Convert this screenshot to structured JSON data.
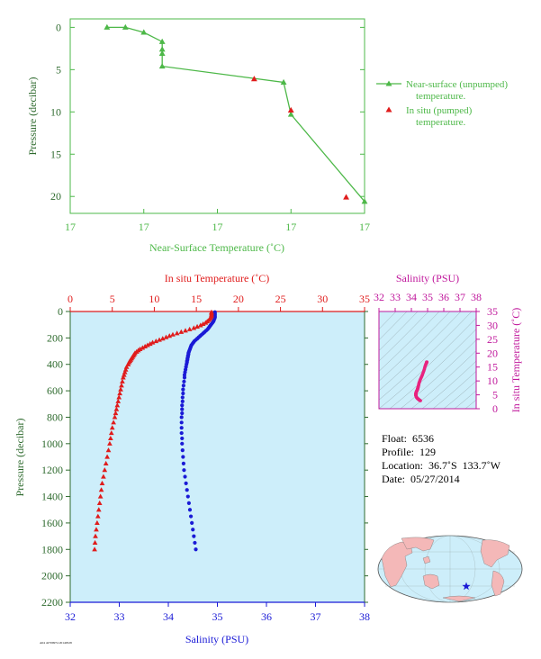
{
  "colors": {
    "green": "#4db848",
    "red": "#e01c1c",
    "blue": "#1a1ad6",
    "magenta": "#c0189c",
    "panel_bg": "#cdeefa",
    "axis_green": "#2f6b2f"
  },
  "chart_data": [
    {
      "type": "line",
      "xlabel": "Near-Surface Temperature (˚C)",
      "ylabel": "Pressure (decibar)",
      "x_tick_labels": [
        "17",
        "17",
        "17",
        "17",
        "17"
      ],
      "y_ticks": [
        0,
        5,
        10,
        15,
        20
      ],
      "xlim": [
        17.0,
        17.4
      ],
      "ylim": [
        22,
        -1
      ],
      "series": [
        {
          "name": "Near-surface (unpumped) temperature.",
          "marker": "triangle-line",
          "x": [
            17.05,
            17.075,
            17.1,
            17.125,
            17.125,
            17.125,
            17.125,
            17.29,
            17.3,
            17.4
          ],
          "y": [
            0,
            0,
            0.6,
            1.7,
            2.6,
            3.1,
            4.6,
            6.5,
            10.3,
            20.6
          ]
        },
        {
          "name": "In situ (pumped) temperature.",
          "marker": "triangle",
          "x": [
            17.25,
            17.3,
            17.375
          ],
          "y": [
            6.1,
            9.8,
            20.1
          ]
        }
      ],
      "legend": [
        {
          "line1": "Near-surface (unpumped)",
          "line2": "temperature."
        },
        {
          "line1": "In situ (pumped)",
          "line2": "temperature."
        }
      ],
      "legend_position": "right"
    },
    {
      "type": "scatter",
      "top_xlabel": "In situ Temperature (˚C)",
      "top_xticks": [
        0,
        5,
        10,
        15,
        20,
        25,
        30,
        35
      ],
      "bottom_xlabel": "Salinity (PSU)",
      "bottom_xticks": [
        32,
        33,
        34,
        35,
        36,
        37,
        38
      ],
      "ylabel": "Pressure (decibar)",
      "yticks": [
        0,
        200,
        400,
        600,
        800,
        1000,
        1200,
        1400,
        1600,
        1800,
        2000,
        2200
      ],
      "temp_lim": [
        0,
        35
      ],
      "sal_lim": [
        32,
        38
      ],
      "ylim": [
        2200,
        0
      ],
      "temperature": {
        "name": "In situ Temperature",
        "p": [
          5,
          15,
          25,
          35,
          45,
          55,
          65,
          75,
          85,
          95,
          105,
          115,
          125,
          135,
          145,
          155,
          165,
          175,
          185,
          195,
          205,
          215,
          225,
          235,
          245,
          255,
          265,
          275,
          285,
          295,
          305,
          315,
          325,
          335,
          345,
          355,
          365,
          375,
          385,
          400,
          420,
          440,
          460,
          480,
          500,
          530,
          560,
          590,
          620,
          650,
          680,
          710,
          740,
          770,
          800,
          840,
          880,
          920,
          960,
          1000,
          1050,
          1100,
          1150,
          1200,
          1250,
          1300,
          1350,
          1400,
          1450,
          1500,
          1550,
          1600,
          1650,
          1700,
          1750,
          1800
        ],
        "t": [
          16.8,
          16.8,
          16.8,
          16.8,
          16.7,
          16.6,
          16.5,
          16.3,
          16.1,
          15.8,
          15.5,
          15.1,
          14.7,
          14.2,
          13.7,
          13.2,
          12.7,
          12.2,
          11.8,
          11.4,
          11.0,
          10.6,
          10.2,
          9.8,
          9.5,
          9.2,
          8.9,
          8.6,
          8.3,
          8.1,
          7.9,
          7.7,
          7.6,
          7.5,
          7.4,
          7.3,
          7.2,
          7.1,
          7.0,
          6.9,
          6.7,
          6.6,
          6.5,
          6.4,
          6.3,
          6.2,
          6.1,
          6.0,
          5.9,
          5.8,
          5.7,
          5.6,
          5.5,
          5.4,
          5.3,
          5.15,
          5.0,
          4.9,
          4.8,
          4.7,
          4.55,
          4.4,
          4.25,
          4.1,
          3.95,
          3.8,
          3.7,
          3.6,
          3.5,
          3.4,
          3.3,
          3.2,
          3.1,
          3.0,
          2.95,
          2.9
        ]
      },
      "salinity": {
        "name": "Salinity",
        "p": [
          5,
          15,
          25,
          35,
          45,
          55,
          65,
          75,
          85,
          95,
          105,
          115,
          125,
          135,
          145,
          155,
          165,
          175,
          185,
          195,
          205,
          215,
          225,
          235,
          245,
          255,
          265,
          275,
          285,
          295,
          305,
          315,
          325,
          335,
          345,
          355,
          365,
          375,
          385,
          400,
          420,
          440,
          460,
          480,
          500,
          530,
          560,
          590,
          620,
          650,
          680,
          710,
          740,
          770,
          800,
          840,
          880,
          920,
          960,
          1000,
          1050,
          1100,
          1150,
          1200,
          1250,
          1300,
          1350,
          1400,
          1450,
          1500,
          1550,
          1600,
          1650,
          1700,
          1750,
          1800
        ],
        "s": [
          34.95,
          34.95,
          34.95,
          34.95,
          34.95,
          34.94,
          34.93,
          34.92,
          34.9,
          34.88,
          34.86,
          34.84,
          34.82,
          34.8,
          34.77,
          34.74,
          34.71,
          34.68,
          34.65,
          34.62,
          34.59,
          34.56,
          34.53,
          34.51,
          34.49,
          34.47,
          34.46,
          34.45,
          34.44,
          34.43,
          34.42,
          34.41,
          34.41,
          34.4,
          34.4,
          34.39,
          34.39,
          34.38,
          34.38,
          34.37,
          34.36,
          34.35,
          34.34,
          34.33,
          34.33,
          34.32,
          34.31,
          34.3,
          34.3,
          34.29,
          34.29,
          34.28,
          34.28,
          34.28,
          34.27,
          34.27,
          34.27,
          34.27,
          34.28,
          34.28,
          34.29,
          34.3,
          34.31,
          34.32,
          34.34,
          34.36,
          34.38,
          34.4,
          34.42,
          34.44,
          34.46,
          34.48,
          34.5,
          34.52,
          34.54,
          34.56
        ]
      }
    },
    {
      "type": "scatter",
      "top_xlabel": "Salinity (PSU)",
      "xticks": [
        32,
        33,
        34,
        35,
        36,
        37,
        38
      ],
      "ylabel": "In situ Temperature (˚C)",
      "yticks": [
        0,
        5,
        10,
        15,
        20,
        25,
        30,
        35
      ],
      "xlim": [
        32,
        38
      ],
      "ylim": [
        0,
        35
      ]
    }
  ],
  "info": {
    "float": "Float:  6536",
    "profile": "Profile:  129",
    "location": "Location:  36.7˚S  133.7˚W",
    "date": "Date:  05/27/2014"
  },
  "map": {
    "marker_label": "float-location"
  },
  "footer": {
    "tiny_text": "A04 42709974 20140528"
  }
}
